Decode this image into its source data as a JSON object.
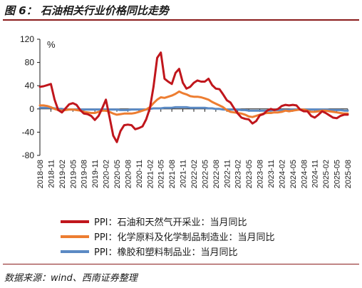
{
  "header": {
    "title": "图 6：  石油相关行业价格同比走势"
  },
  "footer": {
    "source": "数据来源：wind、西南证券整理"
  },
  "colors": {
    "oil": "#c0161c",
    "chem": "#ed7d31",
    "rubber": "#5b8ac4",
    "rule": "#8a1c1c"
  },
  "chart_data": {
    "type": "line",
    "unit": "%",
    "ylim": [
      -80,
      120
    ],
    "yticks": [
      "120",
      "80",
      "40",
      "0",
      "-40",
      "-80"
    ],
    "ytick_values": [
      120,
      80,
      40,
      0,
      -40,
      -80
    ],
    "grid": false,
    "legend_position": "bottom",
    "x": [
      "2018-08",
      "2018-09",
      "2018-10",
      "2018-11",
      "2018-12",
      "2019-01",
      "2019-02",
      "2019-03",
      "2019-04",
      "2019-05",
      "2019-06",
      "2019-07",
      "2019-08",
      "2019-09",
      "2019-10",
      "2019-11",
      "2019-12",
      "2020-01",
      "2020-02",
      "2020-03",
      "2020-04",
      "2020-05",
      "2020-06",
      "2020-07",
      "2020-08",
      "2020-09",
      "2020-10",
      "2020-11",
      "2020-12",
      "2021-01",
      "2021-02",
      "2021-03",
      "2021-04",
      "2021-05",
      "2021-06",
      "2021-07",
      "2021-08",
      "2021-09",
      "2021-10",
      "2021-11",
      "2021-12",
      "2022-01",
      "2022-02",
      "2022-03",
      "2022-04",
      "2022-05",
      "2022-06",
      "2022-07",
      "2022-08",
      "2022-09",
      "2022-10",
      "2022-11",
      "2022-12",
      "2023-01",
      "2023-02",
      "2023-03",
      "2023-04",
      "2023-05",
      "2023-06",
      "2023-07",
      "2023-08",
      "2023-09",
      "2023-10",
      "2023-11",
      "2023-12",
      "2024-01",
      "2024-02",
      "2024-03",
      "2024-04",
      "2024-05",
      "2024-06",
      "2024-07",
      "2024-08",
      "2024-09",
      "2024-10",
      "2024-11",
      "2024-12",
      "2025-01",
      "2025-02",
      "2025-03",
      "2025-04",
      "2025-05",
      "2025-06",
      "2025-07",
      "2025-08"
    ],
    "xtick_labels": [
      "2018-08",
      "2018-11",
      "2019-02",
      "2019-05",
      "2019-08",
      "2019-11",
      "2020-02",
      "2020-05",
      "2020-08",
      "2020-11",
      "2021-02",
      "2021-05",
      "2021-08",
      "2021-11",
      "2022-02",
      "2022-05",
      "2022-08",
      "2022-11",
      "2023-02",
      "2023-05",
      "2023-08",
      "2023-11",
      "2024-02",
      "2024-05",
      "2024-08",
      "2024-11",
      "2025-02",
      "2025-05",
      "2025-08"
    ],
    "series": [
      {
        "name": "PPI：石油和天然气开采业：当月同比",
        "color": "#c0161c",
        "values": [
          38,
          39,
          41,
          43,
          16,
          -2,
          -6,
          1,
          8,
          10,
          7,
          -2,
          -8,
          -9,
          -12,
          -19,
          -12,
          1,
          16,
          -14,
          -46,
          -57,
          -38,
          -28,
          -27,
          -28,
          -35,
          -33,
          -30,
          -18,
          1,
          38,
          88,
          97,
          52,
          47,
          43,
          62,
          69,
          45,
          35,
          38,
          45,
          49,
          47,
          47,
          52,
          41,
          35,
          34,
          25,
          15,
          11,
          1,
          -8,
          -15,
          -17,
          -18,
          -25,
          -21,
          -11,
          -9,
          -3,
          0,
          -2,
          0,
          5,
          7,
          6,
          7,
          6,
          -1,
          -4,
          -4,
          -12,
          -15,
          -10,
          -4,
          -7,
          -11,
          -15,
          -16,
          -12,
          -10,
          -10
        ]
      },
      {
        "name": "PPI：化学原料及化学制品制造业：当月同比",
        "color": "#ed7d31",
        "values": [
          6,
          6,
          5,
          3,
          0,
          -2,
          -3,
          -2,
          -1,
          -1,
          -2,
          -3,
          -5,
          -6,
          -7,
          -7,
          -5,
          -3,
          -3,
          -5,
          -8,
          -10,
          -9,
          -8,
          -8,
          -8,
          -7,
          -5,
          -3,
          -1,
          3,
          10,
          16,
          20,
          19,
          21,
          23,
          26,
          30,
          27,
          25,
          22,
          21,
          21,
          20,
          18,
          16,
          12,
          9,
          6,
          3,
          -2,
          -5,
          -6,
          -7,
          -8,
          -10,
          -13,
          -14,
          -12,
          -10,
          -8,
          -7,
          -7,
          -6,
          -6,
          -5,
          -3,
          -4,
          -3,
          -2,
          -1,
          -1,
          -3,
          -5,
          -5,
          -4,
          -3,
          -3,
          -4,
          -5,
          -6,
          -7,
          -8,
          -8
        ]
      },
      {
        "name": "PPI：橡胶和塑料制品业：当月同比",
        "color": "#5b8ac4",
        "values": [
          2,
          2,
          2,
          2,
          1,
          0,
          0,
          -1,
          -1,
          -1,
          -1,
          -1,
          -1,
          -1,
          -1,
          -1,
          -1,
          -1,
          -1,
          -1,
          -1,
          -1,
          -2,
          -2,
          -2,
          -1,
          -1,
          -1,
          -1,
          -1,
          0,
          1,
          1,
          1,
          2,
          2,
          2,
          3,
          3,
          3,
          3,
          2,
          2,
          2,
          2,
          2,
          1,
          1,
          0,
          0,
          -1,
          -1,
          -1,
          -1,
          -1,
          -2,
          -2,
          -3,
          -3,
          -3,
          -3,
          -3,
          -3,
          -3,
          -2,
          -2,
          -2,
          -2,
          -2,
          -1,
          -1,
          -1,
          -1,
          -1,
          -1,
          -1,
          -1,
          -1,
          -1,
          -2,
          -2,
          -2,
          -2,
          -3,
          -3
        ]
      }
    ]
  }
}
